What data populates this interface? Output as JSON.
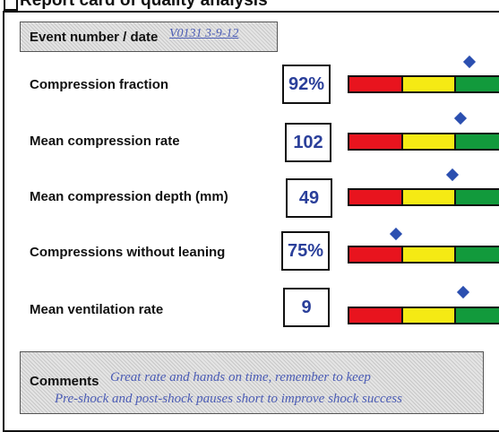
{
  "header": {
    "title": "Report card of quality analysis"
  },
  "event": {
    "label": "Event number / date",
    "value": "V0131 3-9-12"
  },
  "rows": [
    {
      "label": "Compression fraction",
      "value": "92%"
    },
    {
      "label": "Mean compression rate",
      "value": "102"
    },
    {
      "label": "Mean compression depth (mm)",
      "value": "49"
    },
    {
      "label": "Compressions without leaning",
      "value": "75%"
    },
    {
      "label": "Mean ventilation rate",
      "value": "9"
    }
  ],
  "comments": {
    "label": "Comments",
    "lines": [
      "Great rate and hands on time, remember to keep",
      "Pre-shock and post-shock pauses short to improve shock success"
    ]
  }
}
